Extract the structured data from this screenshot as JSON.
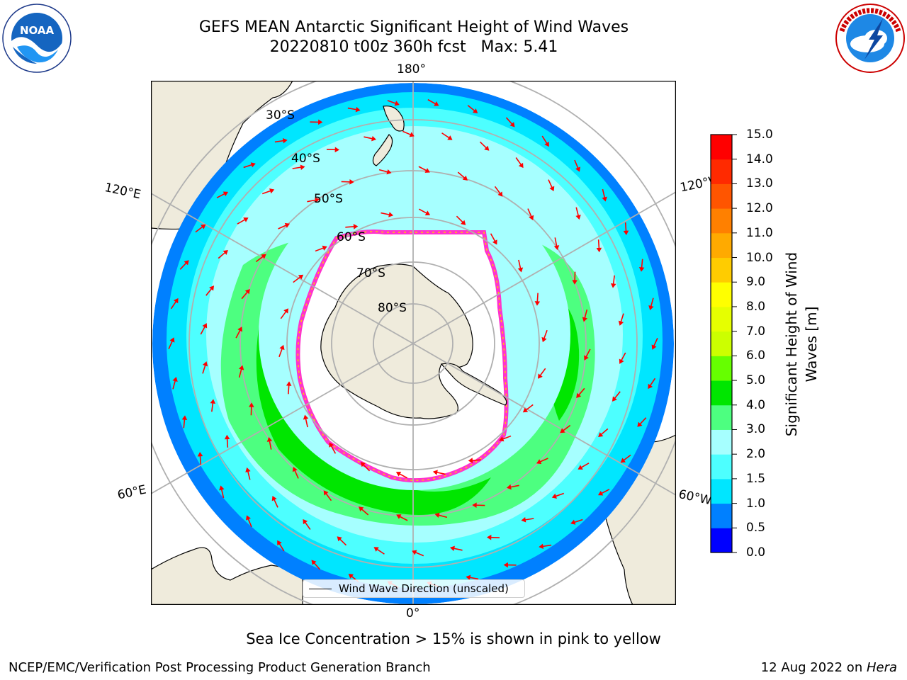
{
  "header": {
    "title_line1": "GEFS MEAN Antarctic Significant Height of Wind Waves",
    "title_line2": "20220810 t00z 360h fcst   Max: 5.41"
  },
  "logos": {
    "noaa": {
      "text": "NOAA",
      "ring_text": "NATIONAL OCEANIC AND ATMOSPHERIC ADMINISTRATION · U.S. DEPARTMENT OF COMMERCE"
    },
    "nws": {
      "ring_text": "NATIONAL WEATHER SERVICE"
    }
  },
  "map": {
    "projection": "south-polar-stereographic",
    "longitude_labels": {
      "top": "180°",
      "bottom": "0°",
      "upper_left": "120°E",
      "lower_left": "60°E",
      "upper_right": "120°W",
      "lower_right": "60°W"
    },
    "latitude_labels": [
      "30°S",
      "40°S",
      "50°S",
      "60°S",
      "70°S",
      "80°S"
    ],
    "legend_text": "Wind Wave Direction (unscaled)",
    "colors": {
      "land": "#efebdc",
      "ocean_background": "#ffffff",
      "arrow": "#ff0000",
      "grid": "#b0b0b0",
      "sea_ice_edge": "#ff33cc"
    }
  },
  "colorbar": {
    "label": "Significant Height of Wind Waves [m]",
    "ticks": [
      "0.0",
      "0.5",
      "1.0",
      "1.5",
      "2.0",
      "3.0",
      "4.0",
      "5.0",
      "6.0",
      "7.0",
      "8.0",
      "9.0",
      "10.0",
      "11.0",
      "12.0",
      "13.0",
      "14.0",
      "15.0"
    ],
    "colors": [
      "#0000ff",
      "#0080ff",
      "#00e6ff",
      "#4dffff",
      "#a6ffff",
      "#4dff80",
      "#00e600",
      "#66ff00",
      "#ccff00",
      "#e6ff00",
      "#ffff00",
      "#ffcc00",
      "#ffaa00",
      "#ff8000",
      "#ff5500",
      "#ff2a00",
      "#ff0000"
    ]
  },
  "caption": "Sea Ice Concentration > 15% is shown in pink to yellow",
  "footer": {
    "left": "NCEP/EMC/Verification Post Processing Product Generation Branch",
    "date": "12 Aug 2022 on ",
    "host": "Hera"
  }
}
